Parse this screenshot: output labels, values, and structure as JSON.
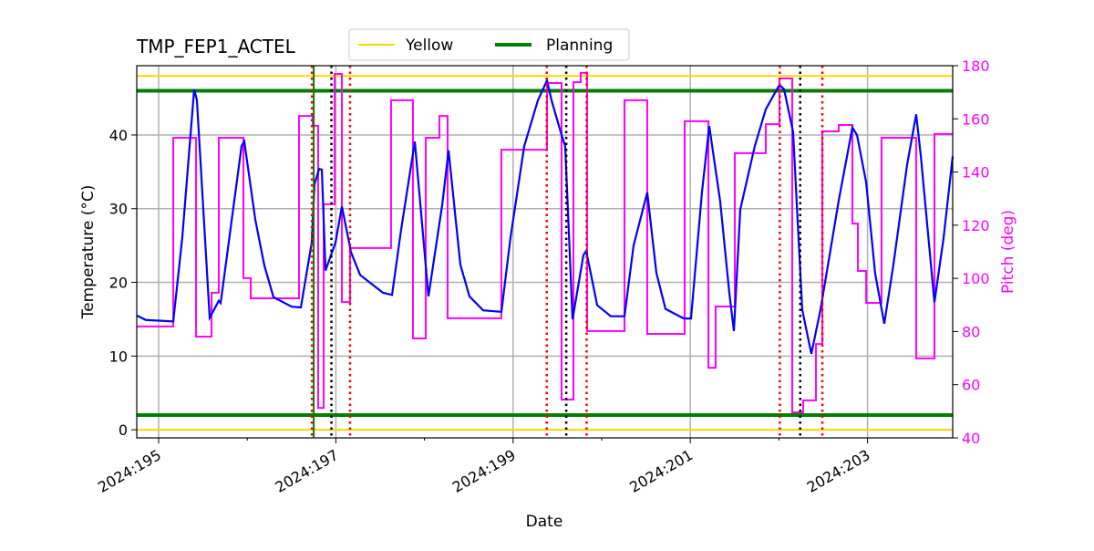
{
  "chart_data": {
    "type": "line",
    "title": "TMP_FEP1_ACTEL",
    "xlabel": "Date",
    "ylabel": "Temperature (°C)",
    "y2label": "Pitch (deg)",
    "xlim": [
      194.753,
      203.961
    ],
    "ylim": [
      -1.1,
      49.4
    ],
    "y2lim": [
      40,
      180
    ],
    "x_ticks": [
      195,
      197,
      199,
      201,
      203
    ],
    "x_tick_labels": [
      "2024:195",
      "2024:197",
      "2024:199",
      "2024:201",
      "2024:203"
    ],
    "x_minor_ticks": [
      196,
      198,
      200,
      202
    ],
    "y_ticks": [
      0,
      10,
      20,
      30,
      40
    ],
    "y2_ticks": [
      40,
      60,
      80,
      100,
      120,
      140,
      160,
      180
    ],
    "grid": true,
    "legend": {
      "placement": "top-center-outside",
      "entries": [
        "Yellow",
        "Planning"
      ]
    },
    "colors": {
      "temperature": "#0000ff",
      "pitch": "#ff00ff",
      "yellow": "#ffd700",
      "planning": "#008000",
      "red_lines": "#ff0000",
      "black_lines": "#000000",
      "green_line": "#008000",
      "y2axis": "#ff00ff"
    },
    "limits": {
      "yellow": [
        0,
        48
      ],
      "planning": [
        2,
        46
      ]
    },
    "vlines_red": [
      196.73,
      197.16,
      199.38,
      199.83,
      202.01,
      202.49
    ],
    "vlines_black": [
      196.95,
      199.6,
      202.24
    ],
    "vlines_green": [
      196.75
    ],
    "temperature": [
      [
        194.753,
        15.5
      ],
      [
        194.856,
        14.9
      ],
      [
        195.165,
        14.7
      ],
      [
        195.267,
        26.1
      ],
      [
        195.401,
        46.2
      ],
      [
        195.432,
        44.7
      ],
      [
        195.576,
        15.2
      ],
      [
        195.679,
        17.5
      ],
      [
        195.7,
        17.2
      ],
      [
        195.936,
        38.5
      ],
      [
        195.967,
        39.1
      ],
      [
        196.091,
        28.5
      ],
      [
        196.193,
        22.3
      ],
      [
        196.296,
        18.0
      ],
      [
        196.502,
        16.7
      ],
      [
        196.605,
        16.6
      ],
      [
        196.728,
        25.4
      ],
      [
        196.759,
        33.3
      ],
      [
        196.811,
        35.4
      ],
      [
        196.842,
        35.3
      ],
      [
        196.883,
        21.6
      ],
      [
        196.996,
        25.4
      ],
      [
        197.068,
        30.3
      ],
      [
        197.171,
        24.1
      ],
      [
        197.274,
        21.0
      ],
      [
        197.531,
        18.6
      ],
      [
        197.634,
        18.3
      ],
      [
        197.737,
        27.2
      ],
      [
        197.891,
        39.1
      ],
      [
        198.045,
        18.1
      ],
      [
        198.2,
        30.5
      ],
      [
        198.272,
        37.9
      ],
      [
        198.405,
        22.4
      ],
      [
        198.508,
        18.1
      ],
      [
        198.663,
        16.2
      ],
      [
        198.868,
        16.0
      ],
      [
        198.971,
        26.1
      ],
      [
        199.126,
        38.5
      ],
      [
        199.28,
        44.7
      ],
      [
        199.383,
        47.4
      ],
      [
        199.434,
        44.7
      ],
      [
        199.537,
        40.4
      ],
      [
        199.588,
        38.5
      ],
      [
        199.671,
        15.0
      ],
      [
        199.794,
        23.7
      ],
      [
        199.825,
        24.3
      ],
      [
        199.949,
        16.9
      ],
      [
        200.103,
        15.4
      ],
      [
        200.257,
        15.4
      ],
      [
        200.36,
        25.0
      ],
      [
        200.514,
        32.2
      ],
      [
        200.617,
        21.3
      ],
      [
        200.72,
        16.4
      ],
      [
        200.926,
        15.1
      ],
      [
        201.008,
        15.1
      ],
      [
        201.132,
        32.3
      ],
      [
        201.214,
        41.2
      ],
      [
        201.337,
        31.0
      ],
      [
        201.44,
        18.6
      ],
      [
        201.492,
        13.4
      ],
      [
        201.564,
        29.9
      ],
      [
        201.728,
        38.5
      ],
      [
        201.852,
        43.5
      ],
      [
        202.006,
        46.8
      ],
      [
        202.058,
        46.2
      ],
      [
        202.16,
        40.4
      ],
      [
        202.263,
        16.3
      ],
      [
        202.366,
        10.3
      ],
      [
        202.469,
        16.3
      ],
      [
        202.572,
        23.7
      ],
      [
        202.675,
        31.1
      ],
      [
        202.829,
        41.0
      ],
      [
        202.881,
        40.0
      ],
      [
        202.984,
        33.6
      ],
      [
        203.086,
        21.2
      ],
      [
        203.189,
        14.4
      ],
      [
        203.292,
        22.4
      ],
      [
        203.447,
        36.0
      ],
      [
        203.549,
        42.8
      ],
      [
        203.601,
        37.2
      ],
      [
        203.755,
        17.3
      ],
      [
        203.858,
        26.0
      ],
      [
        203.961,
        37.1
      ]
    ],
    "pitch_steps": [
      [
        194.753,
        81.9
      ],
      [
        195.165,
        152.9
      ],
      [
        195.422,
        78.1
      ],
      [
        195.597,
        94.6
      ],
      [
        195.679,
        152.9
      ],
      [
        195.957,
        100.1
      ],
      [
        196.039,
        92.5
      ],
      [
        196.584,
        161.1
      ],
      [
        196.739,
        157.4
      ],
      [
        196.8,
        51.3
      ],
      [
        196.862,
        127.9
      ],
      [
        196.986,
        176.9
      ],
      [
        197.068,
        91.1
      ],
      [
        197.16,
        111.4
      ],
      [
        197.623,
        167.0
      ],
      [
        197.87,
        77.4
      ],
      [
        198.014,
        152.9
      ],
      [
        198.169,
        161.1
      ],
      [
        198.261,
        85.0
      ],
      [
        198.868,
        148.4
      ],
      [
        199.383,
        173.5
      ],
      [
        199.547,
        54.4
      ],
      [
        199.681,
        173.8
      ],
      [
        199.763,
        177.3
      ],
      [
        199.835,
        80.2
      ],
      [
        200.257,
        167.0
      ],
      [
        200.514,
        79.1
      ],
      [
        200.936,
        159.1
      ],
      [
        201.204,
        66.4
      ],
      [
        201.286,
        89.4
      ],
      [
        201.502,
        147.1
      ],
      [
        201.852,
        158.0
      ],
      [
        202.006,
        175.2
      ],
      [
        202.15,
        49.6
      ],
      [
        202.273,
        54.1
      ],
      [
        202.418,
        75.3
      ],
      [
        202.49,
        155.3
      ],
      [
        202.675,
        157.7
      ],
      [
        202.829,
        120.6
      ],
      [
        202.891,
        102.8
      ],
      [
        202.984,
        90.8
      ],
      [
        203.158,
        152.9
      ],
      [
        203.549,
        69.9
      ],
      [
        203.755,
        154.3
      ],
      [
        203.961,
        154.3
      ]
    ]
  }
}
